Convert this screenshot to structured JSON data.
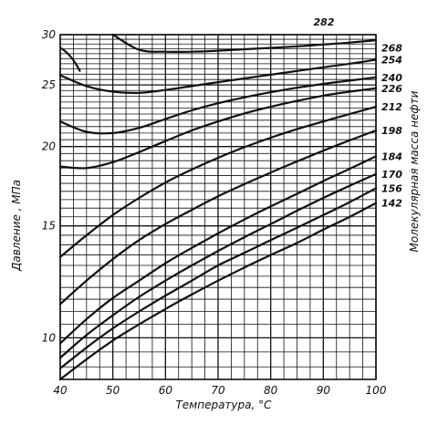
{
  "chart_data": {
    "type": "line",
    "xlabel": "Температура, °С",
    "ylabel": "Давление , МПа",
    "right_label": "Молекулярная масса нефти",
    "x_ticks": [
      "40",
      "50",
      "60",
      "70",
      "80",
      "90",
      "100"
    ],
    "y_ticks": [
      "10",
      "15",
      "20",
      "25",
      "30"
    ],
    "xlim": [
      40,
      100
    ],
    "ylim": [
      8.6,
      30
    ],
    "y_scale": "log",
    "grid": true,
    "line_color": "#111111",
    "x": [
      40,
      45,
      50,
      55,
      60,
      65,
      70,
      75,
      80,
      85,
      90,
      95,
      100
    ],
    "series": [
      {
        "name": "142",
        "values": [
          8.6,
          9.25,
          9.9,
          10.5,
          11.1,
          11.7,
          12.3,
          12.9,
          13.5,
          14.1,
          14.8,
          15.5,
          16.3
        ]
      },
      {
        "name": "156",
        "values": [
          8.95,
          9.65,
          10.35,
          11.0,
          11.65,
          12.3,
          13.0,
          13.6,
          14.25,
          14.9,
          15.6,
          16.35,
          17.2
        ]
      },
      {
        "name": "170",
        "values": [
          9.3,
          10.1,
          10.85,
          11.6,
          12.3,
          13.0,
          13.7,
          14.4,
          15.1,
          15.85,
          16.6,
          17.35,
          18.1
        ]
      },
      {
        "name": "184",
        "values": [
          9.8,
          10.7,
          11.55,
          12.3,
          13.1,
          13.85,
          14.6,
          15.35,
          16.1,
          16.85,
          17.65,
          18.45,
          19.3
        ]
      },
      {
        "name": "198",
        "values": [
          11.3,
          12.3,
          13.3,
          14.25,
          15.1,
          15.9,
          16.7,
          17.45,
          18.2,
          18.95,
          19.7,
          20.45,
          21.2
        ]
      },
      {
        "name": "212",
        "values": [
          13.4,
          14.5,
          15.6,
          16.6,
          17.55,
          18.4,
          19.2,
          19.95,
          20.65,
          21.3,
          21.9,
          22.5,
          23.1
        ]
      },
      {
        "name": "226",
        "values": [
          18.6,
          18.5,
          18.9,
          19.6,
          20.4,
          21.2,
          21.9,
          22.55,
          23.1,
          23.6,
          24.05,
          24.4,
          24.7
        ]
      },
      {
        "name": "240",
        "values": [
          21.9,
          21.1,
          21.0,
          21.4,
          22.1,
          22.8,
          23.4,
          23.9,
          24.35,
          24.75,
          25.1,
          25.4,
          25.7
        ]
      },
      {
        "name": "254",
        "values": [
          25.9,
          24.9,
          24.4,
          24.3,
          24.55,
          24.9,
          25.25,
          25.6,
          25.95,
          26.3,
          26.65,
          27.0,
          27.4
        ]
      },
      {
        "name": "268",
        "values": [
          28.6,
          null,
          null,
          null,
          null,
          null,
          null,
          null,
          null,
          null,
          null,
          null,
          null
        ]
      },
      {
        "name": "282",
        "values": [
          null,
          null,
          30.0,
          28.4,
          28.2,
          28.2,
          28.3,
          28.45,
          28.6,
          28.75,
          28.95,
          29.15,
          29.4
        ]
      }
    ]
  }
}
